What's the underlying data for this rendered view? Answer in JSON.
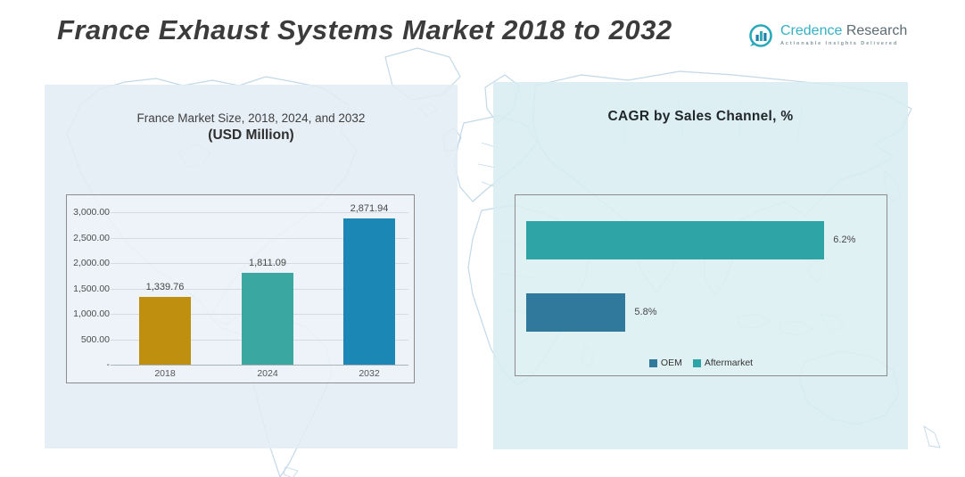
{
  "header": {
    "title": "France Exhaust Systems Market 2018 to 2032",
    "logo": {
      "brand_primary": "Credence",
      "brand_secondary": "Research",
      "tagline": "Actionable Insights Delivered",
      "brand_color": "#35b0c4",
      "icon": "bar-chart-in-circle"
    }
  },
  "left_chart": {
    "title_line1": "France Market Size, 2018, 2024, and 2032",
    "title_line2": "(USD Million)"
  },
  "right_chart": {
    "title": "CAGR by Sales Channel, %"
  },
  "chart_data": [
    {
      "type": "bar",
      "title": "France Market Size, 2018, 2024, and 2032 (USD Million)",
      "categories": [
        "2018",
        "2024",
        "2032"
      ],
      "values": [
        1339.76,
        1811.09,
        2871.94
      ],
      "value_labels": [
        "1,339.76",
        "1,811.09",
        "2,871.94"
      ],
      "bar_colors": [
        "#bf8f10",
        "#3ba7a1",
        "#1a87b4"
      ],
      "ylim": [
        0,
        3000
      ],
      "ytick_labels": [
        "3,000.00",
        "2,500.00",
        "2,000.00",
        "1,500.00",
        "1,000.00",
        "500.00",
        "-"
      ],
      "grid": true,
      "xlabel": "",
      "ylabel": ""
    },
    {
      "type": "bar_horizontal",
      "title": "CAGR by Sales Channel, %",
      "categories": [
        "Aftermarket",
        "OEM"
      ],
      "values": [
        6.2,
        5.8
      ],
      "value_labels": [
        "6.2%",
        "5.8%"
      ],
      "bar_colors": [
        "#2ea4a6",
        "#30799c"
      ],
      "xlim": [
        5.6,
        6.3
      ],
      "grid": false,
      "legend_position": "bottom",
      "legend": [
        {
          "label": "OEM",
          "color": "#30799c"
        },
        {
          "label": "Aftermarket",
          "color": "#2ea4a6"
        }
      ]
    }
  ]
}
